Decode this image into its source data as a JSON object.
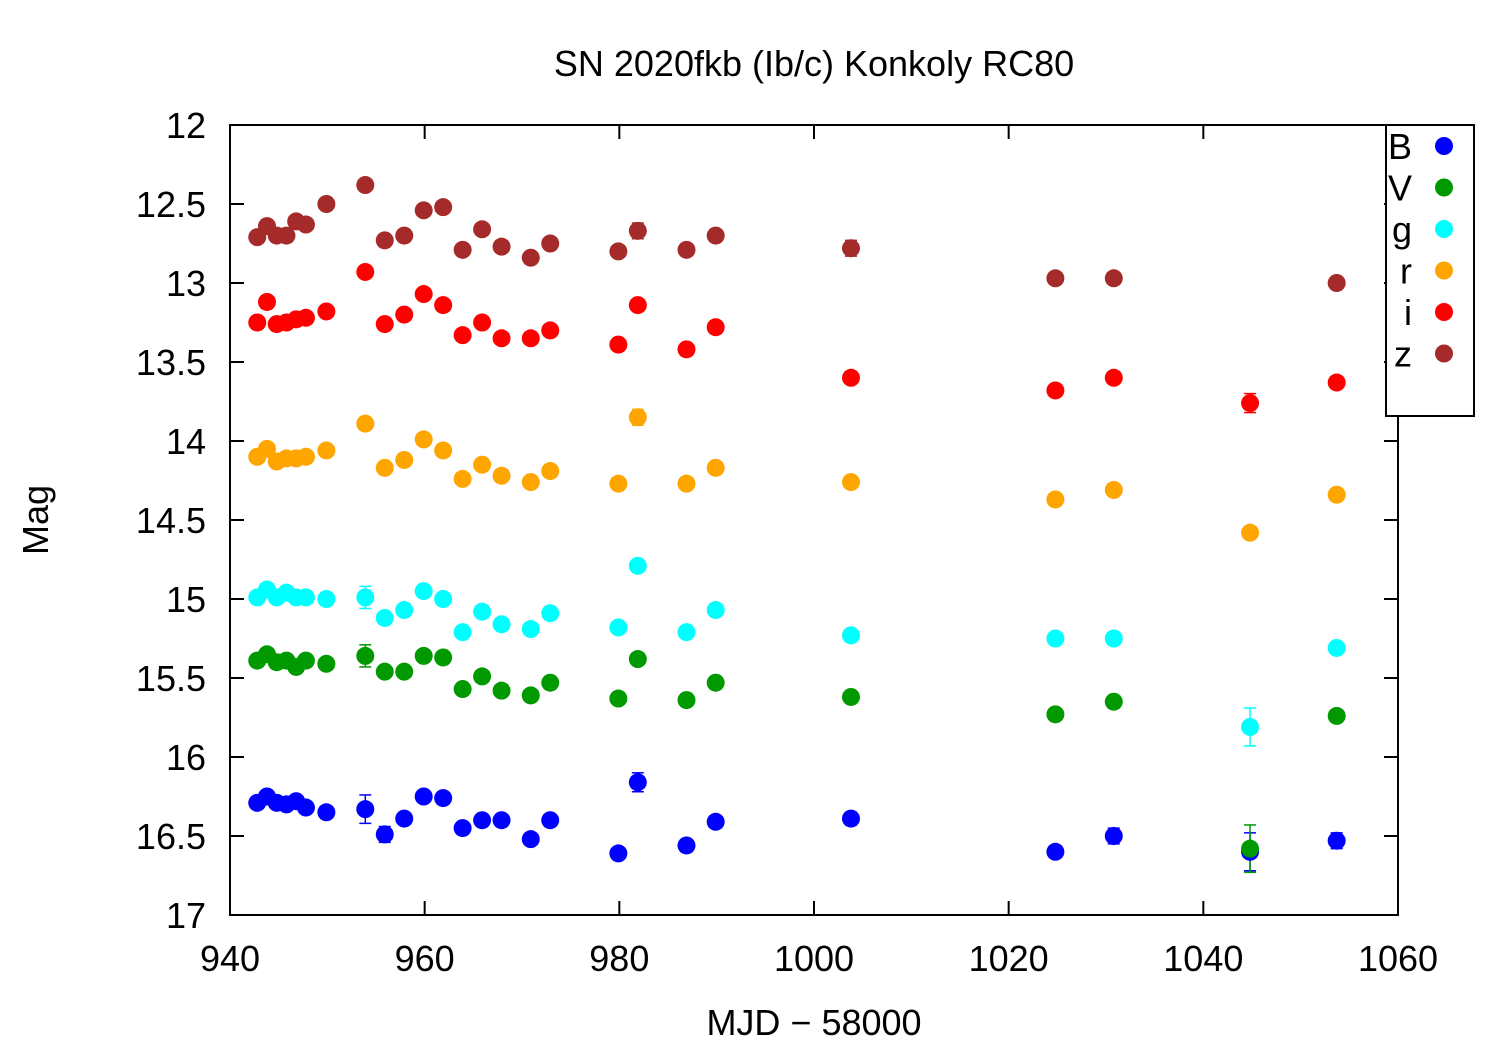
{
  "chart_data": {
    "type": "scatter",
    "title": "SN 2020fkb (Ib/c) Konkoly RC80",
    "xlabel": "MJD − 58000",
    "ylabel": "Mag",
    "xlim": [
      940,
      1060
    ],
    "ylim": [
      17,
      12
    ],
    "y_inverted": true,
    "grid": false,
    "legend_position": "top-right",
    "x_ticks": [
      940,
      960,
      980,
      1000,
      1020,
      1040,
      1060
    ],
    "y_ticks": [
      12,
      12.5,
      13,
      13.5,
      14,
      14.5,
      15,
      15.5,
      16,
      16.5,
      17
    ],
    "x_tick_labels": [
      "940",
      "960",
      "980",
      "1000",
      "1020",
      "1040",
      "1060"
    ],
    "y_tick_labels": [
      "12",
      "12.5",
      "13",
      "13.5",
      "14",
      "14.5",
      "15",
      "15.5",
      "16",
      "16.5",
      "17"
    ],
    "series": [
      {
        "name": "B",
        "color": "#0000ff",
        "points": [
          [
            942.8,
            16.29
          ],
          [
            943.8,
            16.25
          ],
          [
            944.8,
            16.29
          ],
          [
            945.8,
            16.3
          ],
          [
            946.8,
            16.28
          ],
          [
            947.8,
            16.32
          ],
          [
            949.9,
            16.35
          ],
          [
            953.9,
            16.33
          ],
          [
            955.9,
            16.49
          ],
          [
            957.9,
            16.39
          ],
          [
            959.9,
            16.25
          ],
          [
            961.9,
            16.26
          ],
          [
            963.9,
            16.45
          ],
          [
            965.9,
            16.4
          ],
          [
            967.9,
            16.4
          ],
          [
            970.9,
            16.52
          ],
          [
            972.9,
            16.4
          ],
          [
            979.9,
            16.61
          ],
          [
            981.9,
            16.16
          ],
          [
            986.9,
            16.56
          ],
          [
            989.9,
            16.41
          ],
          [
            1003.8,
            16.39
          ],
          [
            1024.8,
            16.6
          ],
          [
            1030.8,
            16.5
          ],
          [
            1044.8,
            16.6
          ],
          [
            1053.7,
            16.53
          ]
        ],
        "errors": [
          0.02,
          0.02,
          0.02,
          0.02,
          0.02,
          0.02,
          0.02,
          0.09,
          0.05,
          0.03,
          0.03,
          0.03,
          0.03,
          0.03,
          0.03,
          0.03,
          0.03,
          0.03,
          0.06,
          0.03,
          0.03,
          0.04,
          0.03,
          0.05,
          0.12,
          0.05
        ]
      },
      {
        "name": "V",
        "color": "#009900",
        "points": [
          [
            942.8,
            15.39
          ],
          [
            943.8,
            15.35
          ],
          [
            944.8,
            15.4
          ],
          [
            945.8,
            15.39
          ],
          [
            946.8,
            15.43
          ],
          [
            947.8,
            15.39
          ],
          [
            949.9,
            15.41
          ],
          [
            953.9,
            15.36
          ],
          [
            955.9,
            15.46
          ],
          [
            957.9,
            15.46
          ],
          [
            959.9,
            15.36
          ],
          [
            961.9,
            15.37
          ],
          [
            963.9,
            15.57
          ],
          [
            965.9,
            15.49
          ],
          [
            967.9,
            15.58
          ],
          [
            970.9,
            15.61
          ],
          [
            972.9,
            15.53
          ],
          [
            979.9,
            15.63
          ],
          [
            981.9,
            15.38
          ],
          [
            986.9,
            15.64
          ],
          [
            989.9,
            15.53
          ],
          [
            1003.8,
            15.62
          ],
          [
            1024.8,
            15.73
          ],
          [
            1030.8,
            15.65
          ],
          [
            1044.8,
            16.58
          ],
          [
            1053.7,
            15.74
          ]
        ],
        "errors": [
          0.02,
          0.02,
          0.02,
          0.02,
          0.02,
          0.02,
          0.02,
          0.07,
          0.03,
          0.02,
          0.02,
          0.02,
          0.02,
          0.02,
          0.02,
          0.02,
          0.02,
          0.02,
          0.03,
          0.02,
          0.02,
          0.02,
          0.02,
          0.02,
          0.15,
          0.02
        ]
      },
      {
        "name": "g",
        "color": "#00ffff",
        "points": [
          [
            942.8,
            14.99
          ],
          [
            943.8,
            14.94
          ],
          [
            944.8,
            14.99
          ],
          [
            945.8,
            14.96
          ],
          [
            946.8,
            14.99
          ],
          [
            947.8,
            14.99
          ],
          [
            949.9,
            15.0
          ],
          [
            953.9,
            14.99
          ],
          [
            955.9,
            15.12
          ],
          [
            957.9,
            15.07
          ],
          [
            959.9,
            14.95
          ],
          [
            961.9,
            15.0
          ],
          [
            963.9,
            15.21
          ],
          [
            965.9,
            15.08
          ],
          [
            967.9,
            15.16
          ],
          [
            970.9,
            15.19
          ],
          [
            972.9,
            15.09
          ],
          [
            979.9,
            15.18
          ],
          [
            981.9,
            14.79
          ],
          [
            986.9,
            15.21
          ],
          [
            989.9,
            15.07
          ],
          [
            1003.8,
            15.23
          ],
          [
            1024.8,
            15.25
          ],
          [
            1030.8,
            15.25
          ],
          [
            1044.8,
            15.81
          ],
          [
            1053.7,
            15.31
          ]
        ],
        "errors": [
          0.02,
          0.02,
          0.02,
          0.02,
          0.02,
          0.02,
          0.02,
          0.07,
          0.03,
          0.02,
          0.02,
          0.02,
          0.02,
          0.02,
          0.02,
          0.02,
          0.02,
          0.02,
          0.03,
          0.02,
          0.02,
          0.02,
          0.02,
          0.02,
          0.12,
          0.02
        ]
      },
      {
        "name": "r",
        "color": "#ffa500",
        "points": [
          [
            942.8,
            14.1
          ],
          [
            943.8,
            14.05
          ],
          [
            944.8,
            14.13
          ],
          [
            945.8,
            14.11
          ],
          [
            946.8,
            14.11
          ],
          [
            947.8,
            14.1
          ],
          [
            949.9,
            14.06
          ],
          [
            953.9,
            13.89
          ],
          [
            955.9,
            14.17
          ],
          [
            957.9,
            14.12
          ],
          [
            959.9,
            13.99
          ],
          [
            961.9,
            14.06
          ],
          [
            963.9,
            14.24
          ],
          [
            965.9,
            14.15
          ],
          [
            967.9,
            14.22
          ],
          [
            970.9,
            14.26
          ],
          [
            972.9,
            14.19
          ],
          [
            979.9,
            14.27
          ],
          [
            981.9,
            13.85
          ],
          [
            986.9,
            14.27
          ],
          [
            989.9,
            14.17
          ],
          [
            1003.8,
            14.26
          ],
          [
            1024.8,
            14.37
          ],
          [
            1030.8,
            14.31
          ],
          [
            1044.8,
            14.58
          ],
          [
            1053.7,
            14.34
          ]
        ],
        "errors": [
          0.02,
          0.02,
          0.02,
          0.02,
          0.02,
          0.02,
          0.02,
          0.03,
          0.02,
          0.02,
          0.02,
          0.02,
          0.02,
          0.02,
          0.02,
          0.02,
          0.02,
          0.02,
          0.05,
          0.02,
          0.02,
          0.02,
          0.02,
          0.02,
          0.02,
          0.02
        ]
      },
      {
        "name": "i",
        "color": "#ff0000",
        "points": [
          [
            942.8,
            13.25
          ],
          [
            943.8,
            13.12
          ],
          [
            944.8,
            13.26
          ],
          [
            945.8,
            13.25
          ],
          [
            946.8,
            13.23
          ],
          [
            947.8,
            13.22
          ],
          [
            949.9,
            13.18
          ],
          [
            953.9,
            12.93
          ],
          [
            955.9,
            13.26
          ],
          [
            957.9,
            13.2
          ],
          [
            959.9,
            13.07
          ],
          [
            961.9,
            13.14
          ],
          [
            963.9,
            13.33
          ],
          [
            965.9,
            13.25
          ],
          [
            967.9,
            13.35
          ],
          [
            970.9,
            13.35
          ],
          [
            972.9,
            13.3
          ],
          [
            979.9,
            13.39
          ],
          [
            981.9,
            13.14
          ],
          [
            986.9,
            13.42
          ],
          [
            989.9,
            13.28
          ],
          [
            1003.8,
            13.6
          ],
          [
            1024.8,
            13.68
          ],
          [
            1030.8,
            13.6
          ],
          [
            1044.8,
            13.76
          ],
          [
            1053.7,
            13.63
          ]
        ],
        "errors": [
          0.02,
          0.02,
          0.02,
          0.02,
          0.02,
          0.02,
          0.02,
          0.02,
          0.02,
          0.02,
          0.02,
          0.02,
          0.02,
          0.02,
          0.02,
          0.02,
          0.02,
          0.02,
          0.02,
          0.02,
          0.02,
          0.02,
          0.02,
          0.02,
          0.06,
          0.02
        ]
      },
      {
        "name": "z",
        "color": "#a52a2a",
        "points": [
          [
            942.8,
            12.71
          ],
          [
            943.8,
            12.64
          ],
          [
            944.8,
            12.7
          ],
          [
            945.8,
            12.7
          ],
          [
            946.8,
            12.61
          ],
          [
            947.8,
            12.63
          ],
          [
            949.9,
            12.5
          ],
          [
            953.9,
            12.38
          ],
          [
            955.9,
            12.73
          ],
          [
            957.9,
            12.7
          ],
          [
            959.9,
            12.54
          ],
          [
            961.9,
            12.52
          ],
          [
            963.9,
            12.79
          ],
          [
            965.9,
            12.66
          ],
          [
            967.9,
            12.77
          ],
          [
            970.9,
            12.84
          ],
          [
            972.9,
            12.75
          ],
          [
            979.9,
            12.8
          ],
          [
            981.9,
            12.67
          ],
          [
            986.9,
            12.79
          ],
          [
            989.9,
            12.7
          ],
          [
            1003.8,
            12.78
          ],
          [
            1024.8,
            12.97
          ],
          [
            1030.8,
            12.97
          ],
          [
            1053.7,
            13.0
          ]
        ],
        "errors": [
          0.02,
          0.02,
          0.02,
          0.02,
          0.02,
          0.02,
          0.02,
          0.02,
          0.02,
          0.02,
          0.02,
          0.02,
          0.02,
          0.02,
          0.02,
          0.02,
          0.02,
          0.02,
          0.05,
          0.02,
          0.02,
          0.05,
          0.02,
          0.02,
          0.02
        ]
      }
    ]
  }
}
